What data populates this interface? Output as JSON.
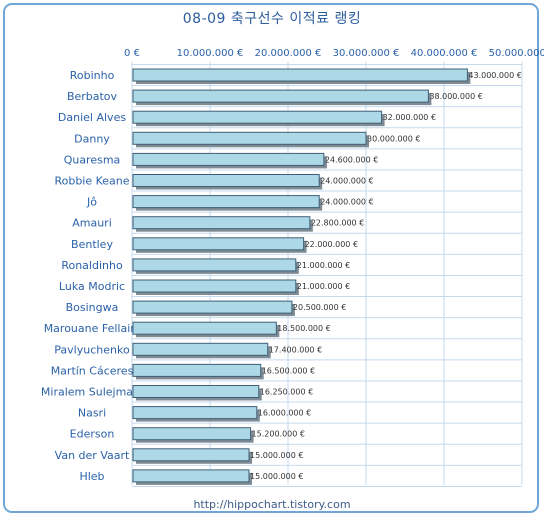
{
  "chart_data": {
    "type": "bar",
    "orientation": "horizontal",
    "title": "08-09 축구선수 이적료 랭킹",
    "footer": "http://hippochart.tistory.com",
    "categories": [
      "Robinho",
      "Berbatov",
      "Daniel Alves",
      "Danny",
      "Quaresma",
      "Robbie Keane",
      "Jô",
      "Amauri",
      "Bentley",
      "Ronaldinho",
      "Luka Modric",
      "Bosingwa",
      "Marouane Fellaini",
      "Pavlyuchenko",
      "Martín Cáceres",
      "Miralem Sulejmani",
      "Nasri",
      "Ederson",
      "Van der Vaart",
      "Hleb"
    ],
    "values": [
      43000000,
      38000000,
      32000000,
      30000000,
      24600000,
      24000000,
      24000000,
      22800000,
      22000000,
      21000000,
      21000000,
      20500000,
      18500000,
      17400000,
      16500000,
      16250000,
      16000000,
      15200000,
      15000000,
      15000000
    ],
    "value_labels": [
      "43.000.000 €",
      "38.000.000 €",
      "32.000.000 €",
      "30.000.000 €",
      "24.600.000 €",
      "24.000.000 €",
      "24.000.000 €",
      "22.800.000 €",
      "22.000.000 €",
      "21.000.000 €",
      "21.000.000 €",
      "20.500.000 €",
      "18.500.000 €",
      "17.400.000 €",
      "16.500.000 €",
      "16.250.000 €",
      "16.000.000 €",
      "15.200.000 €",
      "15.000.000 €",
      "15.000.000 €"
    ],
    "x_ticks": [
      0,
      10000000,
      20000000,
      30000000,
      40000000,
      50000000
    ],
    "x_tick_labels": [
      "0 €",
      "10.000.000 €",
      "20.000.000 €",
      "30.000.000 €",
      "40.000.000 €",
      "50.000.000 €"
    ],
    "xlim": [
      0,
      50000000
    ],
    "axis_position": "top",
    "grid": true,
    "xlabel": "",
    "ylabel": "",
    "colors": {
      "bar_fill": "#add8e6",
      "bar_stroke": "#3f5f77",
      "bar_shadow": "#7f8b95",
      "grid": "#c5d9ee",
      "axis_text": "#2b62a8",
      "frame": "#6fa6d8"
    }
  }
}
